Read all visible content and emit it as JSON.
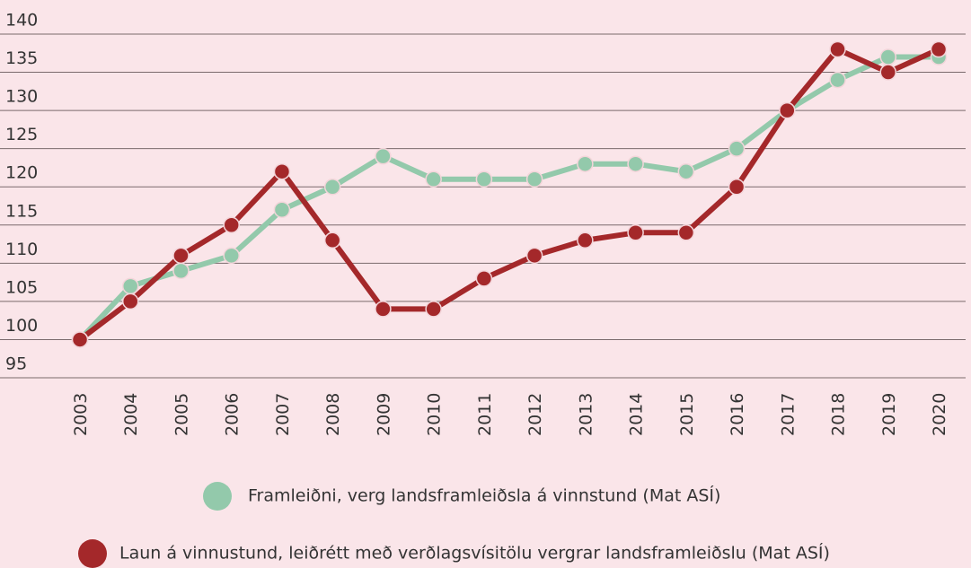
{
  "chart_data": {
    "type": "line",
    "categories": [
      "2003",
      "2004",
      "2005",
      "2006",
      "2007",
      "2008",
      "2009",
      "2010",
      "2011",
      "2012",
      "2013",
      "2014",
      "2015",
      "2016",
      "2017",
      "2018",
      "2019",
      "2020"
    ],
    "series": [
      {
        "name": "Framleiðni, verg landsframleiðsla á vinnstund (Mat ASÍ)",
        "color": "#93c9ab",
        "values": [
          100,
          107,
          109,
          111,
          117,
          120,
          124,
          121,
          121,
          121,
          123,
          123,
          122,
          125,
          130,
          134,
          137,
          137
        ]
      },
      {
        "name": "Laun á vinnustund, leiðrétt með verðlagsvísitölu vergrar landsframleiðslu (Mat ASÍ)",
        "color": "#a4282a",
        "values": [
          100,
          105,
          111,
          115,
          122,
          113,
          104,
          104,
          108,
          111,
          113,
          114,
          114,
          120,
          130,
          138,
          135,
          138
        ]
      }
    ],
    "ylim": [
      95,
      140
    ],
    "yticks": [
      95,
      100,
      105,
      110,
      115,
      120,
      125,
      130,
      135,
      140
    ],
    "grid": true
  }
}
